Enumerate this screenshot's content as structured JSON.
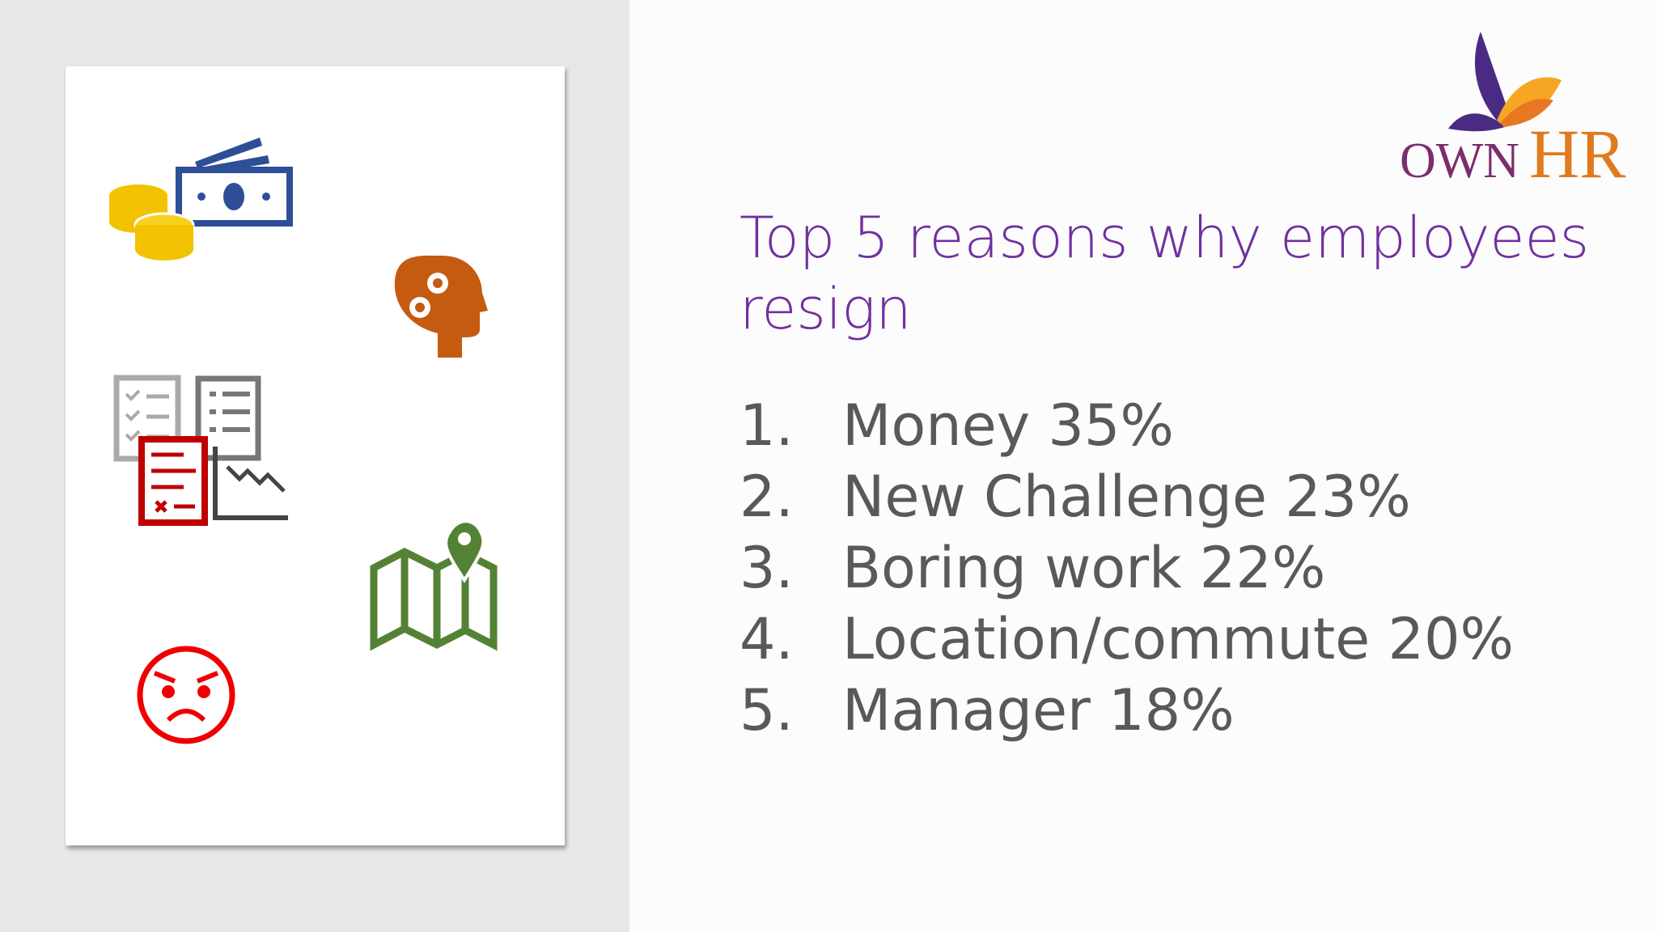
{
  "logo": {
    "own": "OWN",
    "hr": "HR"
  },
  "title": "Top 5 reasons why employees resign",
  "items": [
    {
      "number": "1.",
      "text": "Money 35%"
    },
    {
      "number": "2.",
      "text": "New Challenge 23%"
    },
    {
      "number": "3.",
      "text": "Boring work 22%"
    },
    {
      "number": "4.",
      "text": "Location/commute 20%"
    },
    {
      "number": "5.",
      "text": "Manager 18%"
    }
  ]
}
